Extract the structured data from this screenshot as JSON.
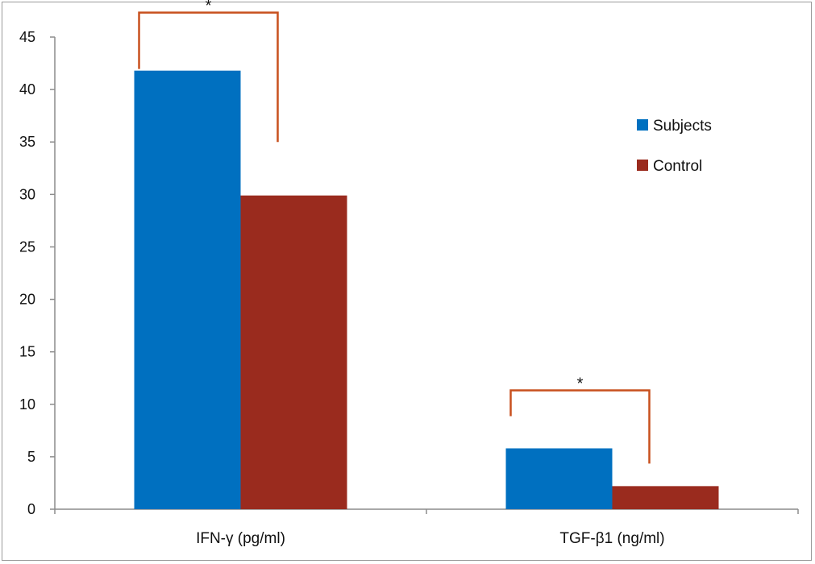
{
  "chart_data": {
    "type": "bar",
    "categories": [
      "IFN-γ (pg/ml)",
      "TGF-β1 (ng/ml)"
    ],
    "series": [
      {
        "name": "Subjects",
        "values": [
          41.8,
          5.8
        ],
        "color": "#0070C0"
      },
      {
        "name": "Control",
        "values": [
          29.9,
          2.2
        ],
        "color": "#9A2B1E"
      }
    ],
    "ylim": [
      0,
      45
    ],
    "yticks": [
      0,
      5,
      10,
      15,
      20,
      25,
      30,
      35,
      40,
      45
    ],
    "grid": false,
    "legend_position": "right",
    "annotations": [
      {
        "category": "IFN-γ (pg/ml)",
        "text": "*",
        "type": "significance-bracket"
      },
      {
        "category": "TGF-β1 (ng/ml)",
        "text": "*",
        "type": "significance-bracket"
      }
    ],
    "bracket_color": "#C8501E"
  }
}
